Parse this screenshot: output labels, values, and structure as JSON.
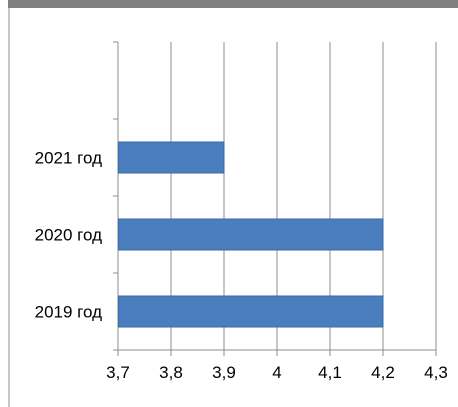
{
  "chart_data": {
    "type": "bar",
    "orientation": "horizontal",
    "title": "",
    "xlabel": "",
    "ylabel": "",
    "categories": [
      "2021 год",
      "2020 год",
      "2019 год"
    ],
    "values": [
      3.9,
      4.2,
      4.2
    ],
    "xlim": [
      3.7,
      4.3
    ],
    "xticks": [
      "3,7",
      "3,8",
      "3,9",
      "4",
      "4,1",
      "4,2",
      "4,3"
    ],
    "grid": "vertical",
    "legend": "none",
    "bar_color": "#4a7ebf",
    "bar_edge_color": "#3a6aa6",
    "grid_color": "#8c8c8c"
  }
}
